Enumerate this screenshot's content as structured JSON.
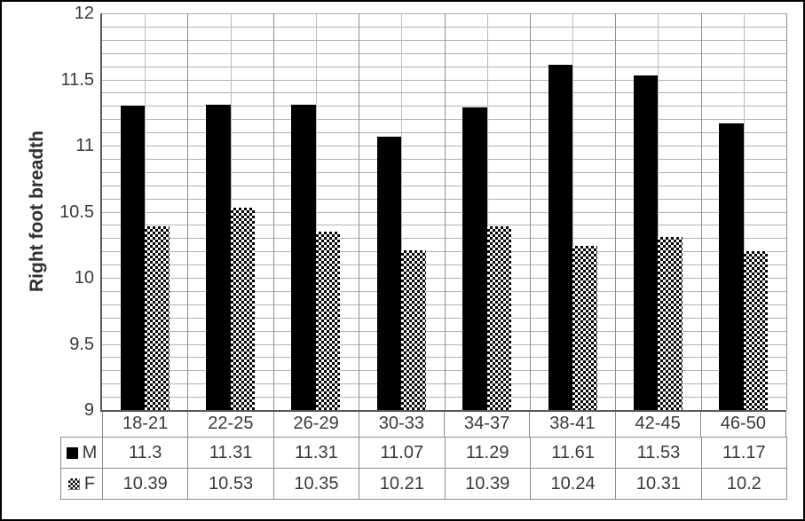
{
  "chart_data": {
    "type": "bar",
    "title": "",
    "xlabel": "",
    "ylabel": "Right foot breadth",
    "ylim": [
      9,
      12
    ],
    "yticks": [
      12,
      11.5,
      11,
      10.5,
      10,
      9.5,
      9
    ],
    "grid": true,
    "grid_minor_step": 0.1,
    "categories": [
      "18-21",
      "22-25",
      "26-29",
      "30-33",
      "34-37",
      "38-41",
      "42-45",
      "46-50"
    ],
    "series": [
      {
        "name": "M",
        "pattern": "solid",
        "values": [
          11.3,
          11.31,
          11.31,
          11.07,
          11.29,
          11.61,
          11.53,
          11.17
        ]
      },
      {
        "name": "F",
        "pattern": "checker",
        "values": [
          10.39,
          10.53,
          10.35,
          10.21,
          10.39,
          10.24,
          10.31,
          10.2
        ]
      }
    ],
    "legend_position": "data-table-left"
  },
  "colors": {
    "bar_fill": "#000000",
    "grid_line": "#b2b2b2",
    "category_grid_line": "#8f8f8f",
    "axis_line": "#595959",
    "table_border": "#8c8c8c",
    "text": "#3a3a3a",
    "frame_border": "#000000",
    "background": "#ffffff"
  }
}
